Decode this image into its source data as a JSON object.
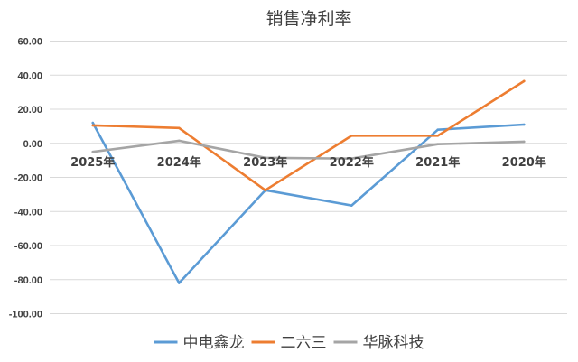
{
  "chart_data": {
    "type": "line",
    "title": "销售净利率",
    "categories": [
      "2025年",
      "2024年",
      "2023年",
      "2022年",
      "2021年",
      "2020年"
    ],
    "yticks": [
      "60.00",
      "40.00",
      "20.00",
      "0.00",
      "-20.00",
      "-40.00",
      "-60.00",
      "-80.00",
      "-100.00"
    ],
    "ylim": [
      -100,
      60
    ],
    "grid": true,
    "legend_position": "bottom",
    "series": [
      {
        "name": "中电鑫龙",
        "color": "#5b9bd5",
        "values": [
          12.0,
          -82.0,
          -27.5,
          -36.5,
          8.0,
          11.0
        ]
      },
      {
        "name": "二六三",
        "color": "#ed7d31",
        "values": [
          10.5,
          9.0,
          -27.5,
          4.5,
          4.5,
          36.5
        ]
      },
      {
        "name": "华脉科技",
        "color": "#a5a5a5",
        "values": [
          -5.0,
          1.5,
          -8.5,
          -9.0,
          -0.5,
          1.0
        ]
      }
    ]
  }
}
